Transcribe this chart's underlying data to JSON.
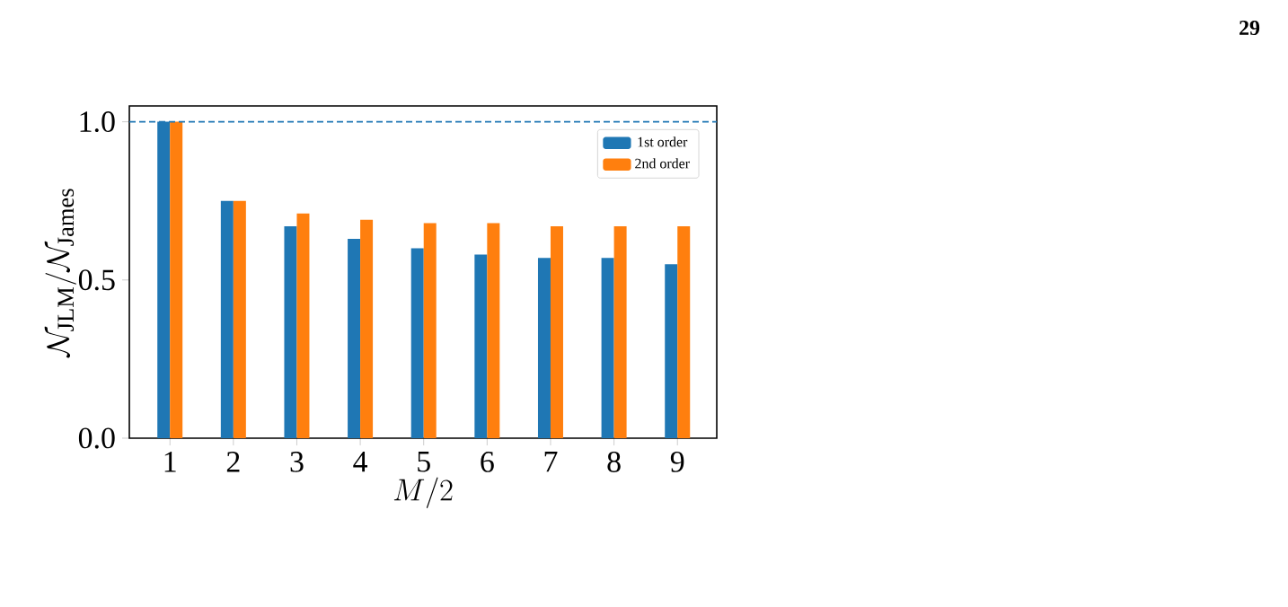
{
  "chart_data": {
    "type": "bar",
    "xlabel": "M/2",
    "ylabel": "\\mathcal{N}_{\\mathrm{JLM}}/\\mathcal{N}_{\\mathrm{James}}",
    "categories": [
      "1",
      "2",
      "3",
      "4",
      "5",
      "6",
      "7",
      "8",
      "9"
    ],
    "series": [
      {
        "name": "1st order",
        "color": "#1f77b4",
        "values": [
          1.0,
          0.75,
          0.67,
          0.63,
          0.6,
          0.58,
          0.57,
          0.57,
          0.55
        ]
      },
      {
        "name": "2nd order",
        "color": "#ff7f0e",
        "values": [
          1.0,
          0.75,
          0.71,
          0.69,
          0.68,
          0.68,
          0.67,
          0.67,
          0.67
        ]
      }
    ],
    "ylim": [
      0,
      1.05
    ],
    "yticks": [
      {
        "value": 0,
        "label": "0.0"
      },
      {
        "value": 0.5,
        "label": "0.5"
      },
      {
        "value": 1.0,
        "label": "1.0"
      }
    ],
    "ref_lines": [
      {
        "axis": "y",
        "value": 1.0,
        "color": "#1f77b4",
        "line_style": "dashed"
      }
    ],
    "legend": "top right",
    "grid": false,
    "annotations": [
      "29"
    ]
  }
}
